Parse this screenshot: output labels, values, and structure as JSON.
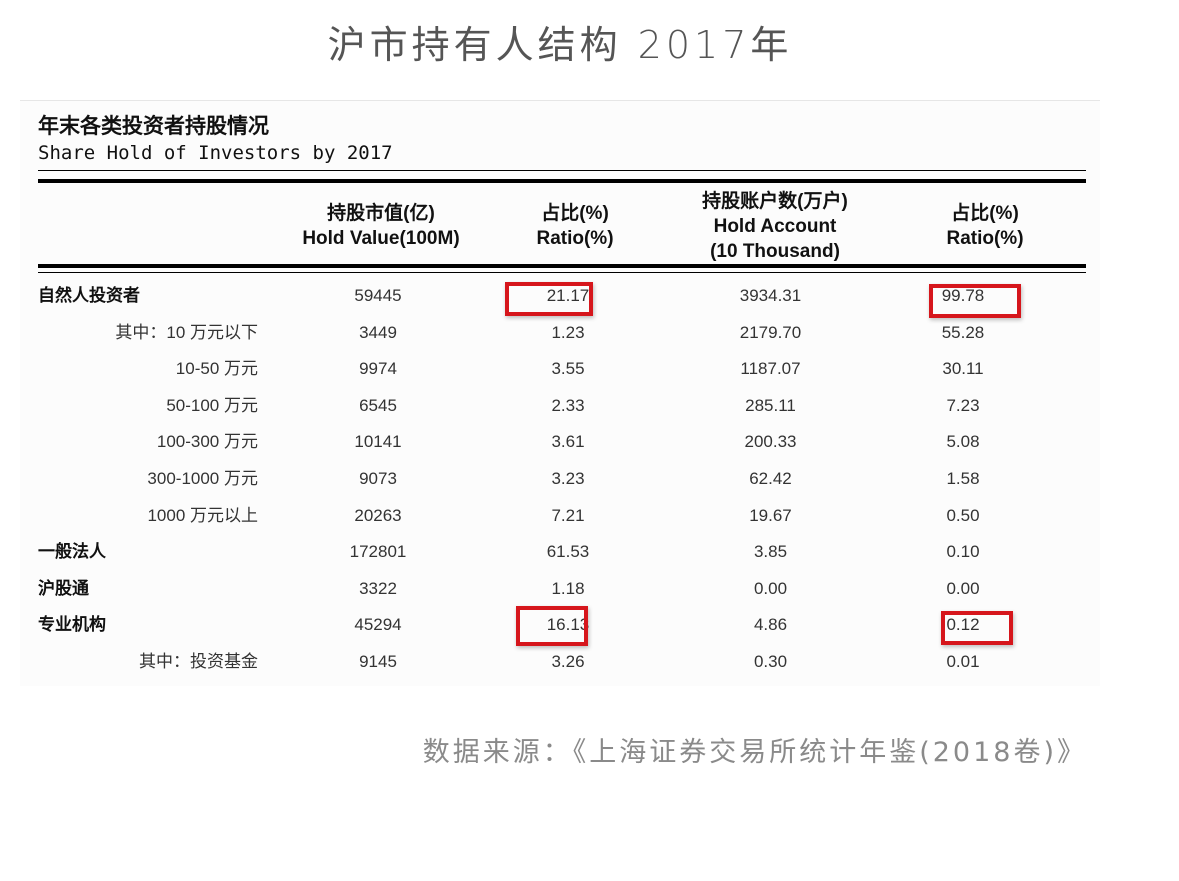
{
  "title": "沪市持有人结构 2017年",
  "heading_cn": "年末各类投资者持股情况",
  "heading_en": "Share Hold of Investors by 2017",
  "columns": [
    {
      "cn": "持股市值(亿)",
      "en": "Hold Value(100M)"
    },
    {
      "cn": "占比(%)",
      "en": "Ratio(%)"
    },
    {
      "cn": "持股账户数(万户)",
      "en": "Hold Account",
      "en2": "(10 Thousand)"
    },
    {
      "cn": "占比(%)",
      "en": "Ratio(%)"
    }
  ],
  "rows": [
    {
      "label": "自然人投资者",
      "level": 0,
      "values": [
        "59445",
        "21.17",
        "3934.31",
        "99.78"
      ]
    },
    {
      "label": "其中：10 万元以下",
      "level": 1,
      "values": [
        "3449",
        "1.23",
        "2179.70",
        "55.28"
      ]
    },
    {
      "label": "10-50 万元",
      "level": 1,
      "values": [
        "9974",
        "3.55",
        "1187.07",
        "30.11"
      ]
    },
    {
      "label": "50-100 万元",
      "level": 1,
      "values": [
        "6545",
        "2.33",
        "285.11",
        "7.23"
      ]
    },
    {
      "label": "100-300 万元",
      "level": 1,
      "values": [
        "10141",
        "3.61",
        "200.33",
        "5.08"
      ]
    },
    {
      "label": "300-1000 万元",
      "level": 1,
      "values": [
        "9073",
        "3.23",
        "62.42",
        "1.58"
      ]
    },
    {
      "label": "1000 万元以上",
      "level": 1,
      "values": [
        "20263",
        "7.21",
        "19.67",
        "0.50"
      ]
    },
    {
      "label": "一般法人",
      "level": 0,
      "values": [
        "172801",
        "61.53",
        "3.85",
        "0.10"
      ]
    },
    {
      "label": "沪股通",
      "level": 0,
      "values": [
        "3322",
        "1.18",
        "0.00",
        "0.00"
      ]
    },
    {
      "label": "专业机构",
      "level": 0,
      "values": [
        "45294",
        "16.13",
        "4.86",
        "0.12"
      ]
    },
    {
      "label": "其中：投资基金",
      "level": 1,
      "values": [
        "9145",
        "3.26",
        "0.30",
        "0.01"
      ]
    }
  ],
  "highlight_color": "#d6161c",
  "source": "数据来源：《上海证券交易所统计年鉴(2018卷)》"
}
